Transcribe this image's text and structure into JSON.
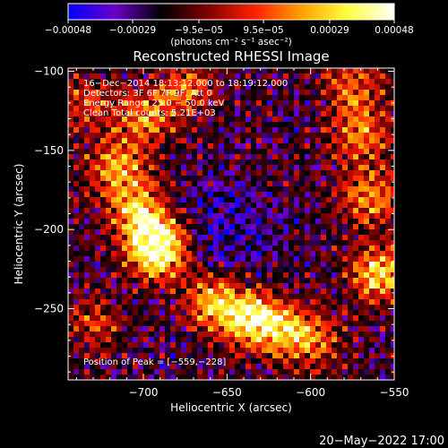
{
  "chart_data": {
    "type": "heatmap",
    "title": "Reconstructed RHESSI Image",
    "xlabel": "Heliocentric X (arcsec)",
    "ylabel": "Heliocentric Y (arcsec)",
    "xlim": [
      -745,
      -550
    ],
    "ylim": [
      -295,
      -98
    ],
    "x_ticks": [
      -700,
      -650,
      -600,
      -550
    ],
    "y_ticks": [
      -100,
      -150,
      -200,
      -250
    ],
    "x_tick_labels": [
      "−700",
      "−650",
      "−600",
      "−550"
    ],
    "y_tick_labels": [
      "−100",
      "−150",
      "−200",
      "−250"
    ],
    "colorbar": {
      "min": -0.00048,
      "max": 0.00048,
      "ticks": [
        -0.00048,
        -0.00029,
        -9.5e-05,
        9.5e-05,
        0.00029,
        0.00048
      ],
      "tick_labels": [
        "−0.00048",
        "−0.00029",
        "−9.5e−05",
        "9.5e−05",
        "0.00029",
        "0.00048"
      ],
      "unit_label": "(photons cm⁻² s⁻¹ asec⁻²)",
      "colormap": [
        "#0000ff",
        "#6a00c8",
        "#000000",
        "#800000",
        "#ff2000",
        "#ffa000",
        "#ffff40",
        "#ffffff"
      ]
    },
    "info_lines": [
      "16−Dec−2014 18:13:12.000 to 18:19:12.000",
      "Detectors: 3F 6F 7F 9F, Att 0",
      "Energy Range: 25.0 − 50.0 keV",
      "Clean    Total counts: 5.21E+03"
    ],
    "peak_label": "Position of Peak = [−559,−228]",
    "peak": [
      -559,
      -228
    ],
    "emission_regions": [
      {
        "x": -695,
        "y": -205,
        "level": 0.95
      },
      {
        "x": -690,
        "y": -215,
        "level": 0.85
      },
      {
        "x": -705,
        "y": -185,
        "level": 0.7
      },
      {
        "x": -715,
        "y": -160,
        "level": 0.75
      },
      {
        "x": -700,
        "y": -130,
        "level": 0.7
      },
      {
        "x": -675,
        "y": -112,
        "level": 0.6
      },
      {
        "x": -640,
        "y": -255,
        "level": 0.95
      },
      {
        "x": -620,
        "y": -262,
        "level": 0.8
      },
      {
        "x": -660,
        "y": -245,
        "level": 0.7
      },
      {
        "x": -600,
        "y": -270,
        "level": 0.6
      },
      {
        "x": -559,
        "y": -228,
        "level": 1.0
      },
      {
        "x": -565,
        "y": -180,
        "level": 0.75
      },
      {
        "x": -570,
        "y": -140,
        "level": 0.7
      },
      {
        "x": -575,
        "y": -110,
        "level": 0.6
      },
      {
        "x": -730,
        "y": -260,
        "level": 0.45
      },
      {
        "x": -735,
        "y": -120,
        "level": 0.5
      }
    ]
  },
  "footer": {
    "timestamp": "20−May−2022 17:00"
  }
}
